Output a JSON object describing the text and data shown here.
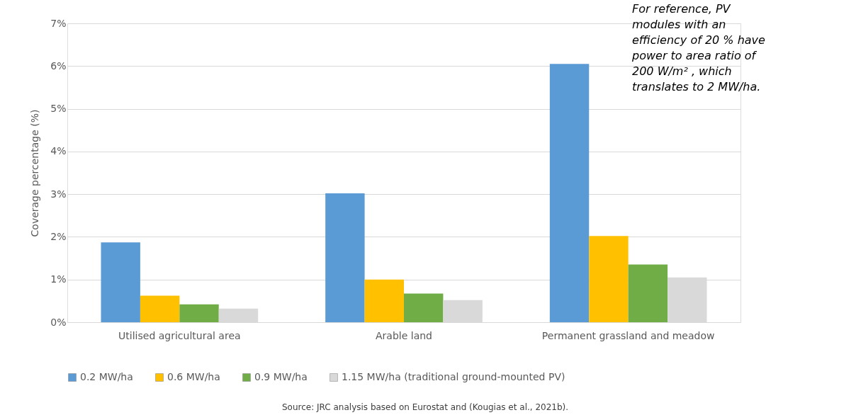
{
  "chart_data": {
    "type": "bar",
    "ylabel": "Coverage percentage (%)",
    "categories": [
      "Utilised agricultural area",
      "Arable land",
      "Permanent grassland and meadow"
    ],
    "series": [
      {
        "name": "0.2 MW/ha",
        "color": "#5b9bd5",
        "values": [
          1.87,
          3.02,
          6.05
        ]
      },
      {
        "name": "0.6 MW/ha",
        "color": "#ffc000",
        "values": [
          0.62,
          1.0,
          2.02
        ]
      },
      {
        "name": "0.9 MW/ha",
        "color": "#70ad47",
        "values": [
          0.42,
          0.67,
          1.35
        ]
      },
      {
        "name": "1.15 MW/ha (traditional ground-mounted PV)",
        "color": "#d9d9d9",
        "values": [
          0.32,
          0.52,
          1.05
        ]
      }
    ],
    "ylim": [
      0,
      7
    ],
    "yticks": [
      {
        "value": 0,
        "label": "0%"
      },
      {
        "value": 1,
        "label": "1%"
      },
      {
        "value": 2,
        "label": "2%"
      },
      {
        "value": 3,
        "label": "3%"
      },
      {
        "value": 4,
        "label": "4%"
      },
      {
        "value": 5,
        "label": "5%"
      },
      {
        "value": 6,
        "label": "6%"
      },
      {
        "value": 7,
        "label": "7%"
      }
    ],
    "grid": "y",
    "legend": "bottom",
    "annotations": [
      "For reference, PV modules with an efficiency of 20 % have power to area ratio of 200 W/m² , which translates to 2 MW/ha.",
      "Source: JRC analysis based on Eurostat and (Kougias et al., 2021b)."
    ]
  }
}
